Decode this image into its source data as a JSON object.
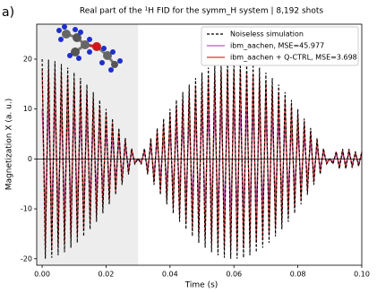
{
  "chart_data": {
    "type": "line",
    "panel_label": "a)",
    "title": "Real part of the ¹H FID for the symm_H system | 8,192 shots",
    "xlabel": "Time (s)",
    "ylabel": "Magnetization X (a. u.)",
    "xlim": [
      -0.0017,
      0.1
    ],
    "ylim": [
      -21.3,
      27
    ],
    "xticks": [
      {
        "value": 0,
        "label": "0.00"
      },
      {
        "value": 0.02,
        "label": "0.02"
      },
      {
        "value": 0.04,
        "label": "0.04"
      },
      {
        "value": 0.06,
        "label": "0.06"
      },
      {
        "value": 0.08,
        "label": "0.08"
      },
      {
        "value": 0.1,
        "label": "0.10"
      }
    ],
    "yticks": [
      -20,
      -10,
      0,
      10,
      20
    ],
    "highlight_span": [
      -0.0017,
      0.03
    ],
    "hline": 0,
    "legend": "upper right",
    "x": [
      0,
      0.001,
      0.002,
      0.003,
      0.004,
      0.005,
      0.006,
      0.007,
      0.008,
      0.009,
      0.01,
      0.011,
      0.012,
      0.013,
      0.014,
      0.015,
      0.016,
      0.017,
      0.018,
      0.019,
      0.02,
      0.021,
      0.022,
      0.023,
      0.024,
      0.025,
      0.026,
      0.027,
      0.028,
      0.029,
      0.03,
      0.031,
      0.032,
      0.033,
      0.034,
      0.035,
      0.036,
      0.037,
      0.038,
      0.039,
      0.04,
      0.041,
      0.042,
      0.043,
      0.044,
      0.045,
      0.046,
      0.047,
      0.048,
      0.049,
      0.05,
      0.051,
      0.052,
      0.053,
      0.054,
      0.055,
      0.056,
      0.057,
      0.058,
      0.059,
      0.06,
      0.061,
      0.062,
      0.063,
      0.064,
      0.065,
      0.066,
      0.067,
      0.068,
      0.069,
      0.07,
      0.071,
      0.072,
      0.073,
      0.074,
      0.075,
      0.076,
      0.077,
      0.078,
      0.079,
      0.08,
      0.081,
      0.082,
      0.083,
      0.084,
      0.085,
      0.086,
      0.087,
      0.088,
      0.089,
      0.09,
      0.091,
      0.092,
      0.093,
      0.094,
      0.095,
      0.096,
      0.097,
      0.098,
      0.099,
      0.1
    ],
    "series": [
      {
        "name": "Noiseless simulation",
        "color": "#000000",
        "linestyle": "dashed",
        "values": [
          20,
          -20,
          19.9,
          -19.8,
          19.6,
          -19.3,
          19,
          -18.7,
          18.3,
          -17.8,
          17.3,
          -16.8,
          16.2,
          -15.5,
          14.9,
          -14.1,
          13.4,
          -12.6,
          11.8,
          -10.9,
          10,
          -9.1,
          8.1,
          -7.2,
          6.2,
          -5.2,
          4.2,
          -3.1,
          2.1,
          -1,
          0,
          -1,
          2.1,
          -3.1,
          4.2,
          -5.2,
          6.2,
          -7.2,
          8.1,
          -9.1,
          10,
          -10.9,
          11.8,
          -12.6,
          13.4,
          -14.1,
          14.9,
          -15.5,
          16.2,
          -16.8,
          17.3,
          -17.8,
          18.3,
          -18.7,
          19,
          -19.3,
          19.6,
          -19.8,
          19.9,
          -20,
          20,
          -20,
          19.9,
          -19.8,
          19.6,
          -19.3,
          19,
          -18.7,
          18.3,
          -17.8,
          17.3,
          -16.8,
          16.2,
          -15.5,
          14.9,
          -14.1,
          13.4,
          -12.6,
          11.8,
          -10.9,
          10,
          -9.1,
          8.1,
          -7.2,
          6.2,
          -5.2,
          4.2,
          -3.1,
          2.1,
          -1,
          0,
          -1,
          1.5,
          -2,
          2,
          -2,
          2,
          -1.8,
          1.5,
          -1.5,
          1.5
        ]
      },
      {
        "name": "ibm_aachen, MSE=45.977",
        "color": "#b35ab8",
        "linestyle": "solid",
        "values": [
          10,
          -10,
          10,
          -9.9,
          9.8,
          -9.7,
          9.5,
          -9.4,
          9.2,
          -8.9,
          8.7,
          -8.4,
          8.1,
          -7.8,
          7.5,
          -7.1,
          6.7,
          -6.3,
          5.9,
          -5.5,
          5,
          -4.6,
          4.1,
          -3.6,
          3.1,
          -2.6,
          2.1,
          -1.6,
          1.1,
          -0.5,
          0,
          -0.5,
          1.1,
          -1.6,
          2.1,
          -2.6,
          3.1,
          -3.6,
          4.1,
          -4.6,
          5,
          -5.5,
          5.9,
          -6.3,
          6.7,
          -7.1,
          7.5,
          -7.8,
          8.1,
          -8.4,
          8.7,
          -8.9,
          9.2,
          -9.4,
          9.5,
          -9.7,
          9.8,
          -9.9,
          10,
          -10,
          10,
          -10,
          10,
          -9.9,
          9.8,
          -9.7,
          9.5,
          -9.4,
          9.2,
          -8.9,
          8.7,
          -8.4,
          8.1,
          -7.8,
          7.5,
          -7.1,
          6.7,
          -6.3,
          5.9,
          -5.5,
          5,
          -4.6,
          4.1,
          -3.6,
          3.1,
          -2.6,
          2.1,
          -1.6,
          1.1,
          -0.5,
          0,
          -0.5,
          0.8,
          -1,
          1,
          -1,
          1,
          -0.9,
          0.8,
          -0.8,
          0.8
        ]
      },
      {
        "name": "ibm_aachen + Q-CTRL, MSE=3.698",
        "color": "#e0302c",
        "linestyle": "solid",
        "values": [
          18,
          -18,
          17.9,
          -17.8,
          17.6,
          -17.4,
          17.1,
          -16.8,
          16.5,
          -16,
          15.6,
          -15.1,
          14.6,
          -14,
          13.4,
          -12.7,
          12.1,
          -11.3,
          10.6,
          -9.8,
          9,
          -8.2,
          7.3,
          -6.5,
          5.6,
          -4.7,
          3.8,
          -2.8,
          1.9,
          -0.9,
          0,
          -0.9,
          1.9,
          -2.8,
          3.8,
          -4.7,
          5.6,
          -6.5,
          7.3,
          -8.2,
          9,
          -9.8,
          10.6,
          -11.3,
          12.1,
          -12.7,
          13.4,
          -14,
          14.6,
          -15.1,
          15.6,
          -16,
          16.5,
          -16.8,
          17.1,
          -17.4,
          17.6,
          -17.8,
          17.9,
          -18,
          18,
          -18,
          17.9,
          -17.8,
          17.6,
          -17.4,
          17.1,
          -16.8,
          16.5,
          -16,
          15.6,
          -15.1,
          14.6,
          -14,
          13.4,
          -12.7,
          12.1,
          -11.3,
          10.6,
          -9.8,
          9,
          -8.2,
          7.3,
          -6.5,
          5.6,
          -4.7,
          3.8,
          -2.8,
          1.9,
          -0.9,
          0,
          -0.9,
          1.4,
          -1.8,
          1.8,
          -1.8,
          1.8,
          -1.6,
          1.4,
          -1.4,
          1.4
        ]
      }
    ]
  }
}
